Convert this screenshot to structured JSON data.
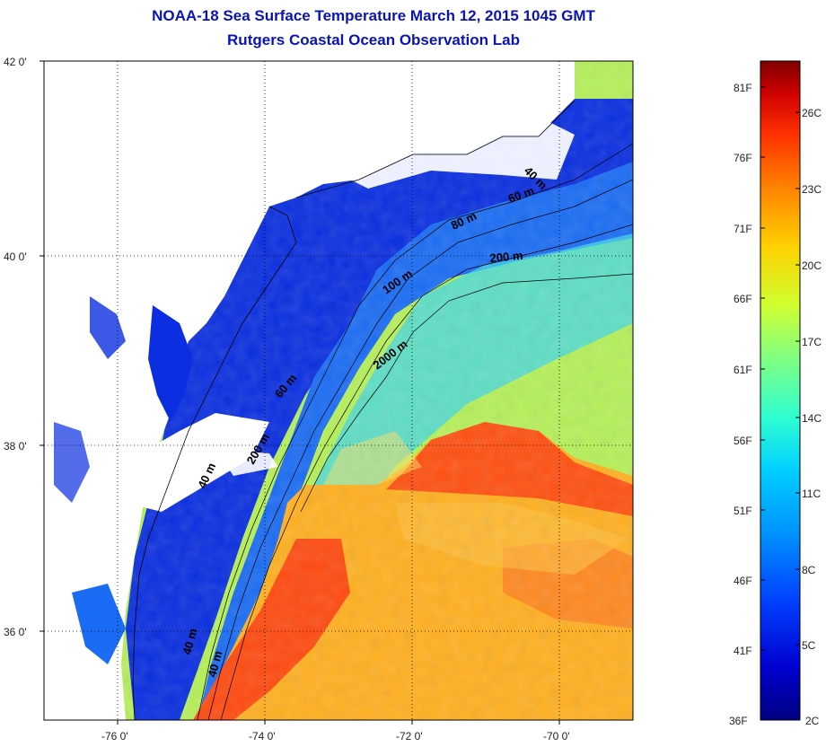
{
  "title": "NOAA-18 Sea Surface Temperature March 12, 2015 1045 GMT",
  "subtitle": "Rutgers Coastal Ocean Observation Lab",
  "map": {
    "lat_ticks": [
      "42 0'",
      "40 0'",
      "38 0'",
      "36 0'"
    ],
    "lon_ticks": [
      "-76 0'",
      "-74 0'",
      "-72 0'",
      "-70 0'"
    ],
    "lat_range": [
      35,
      42
    ],
    "lon_range": [
      -77,
      -69
    ],
    "contours": [
      "40 m",
      "60 m",
      "80 m",
      "200 m",
      "100 m",
      "60 m",
      "2000 m",
      "200 m",
      "40 m",
      "40 m",
      "40 m"
    ]
  },
  "colorbar": {
    "fahrenheit_labels": [
      "81F",
      "76F",
      "71F",
      "66F",
      "61F",
      "56F",
      "51F",
      "46F",
      "41F",
      "36F"
    ],
    "celsius_labels": [
      "26C",
      "23C",
      "20C",
      "17C",
      "14C",
      "11C",
      "8C",
      "5C",
      "2C"
    ],
    "colors": [
      "#000080",
      "#0000d0",
      "#0040ff",
      "#0090ff",
      "#00d0ff",
      "#30ffd0",
      "#80ff80",
      "#d0ff30",
      "#ffd000",
      "#ff8000",
      "#ff3000",
      "#d00000",
      "#800000"
    ]
  }
}
